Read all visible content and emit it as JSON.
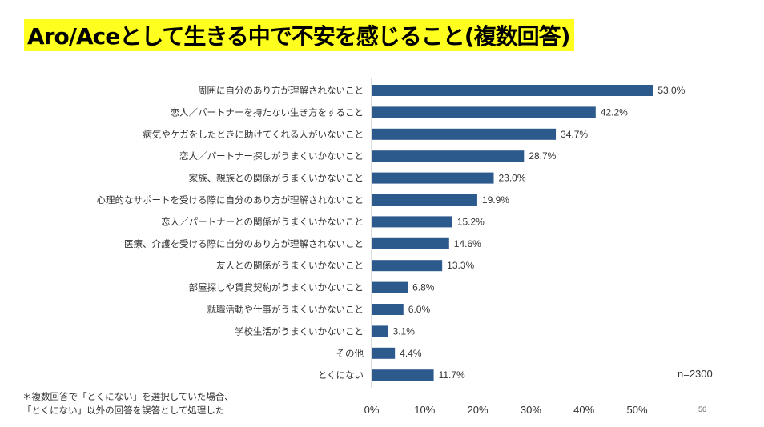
{
  "slide": {
    "title": "Aro/Aceとして生きる中で不安を感じること(複数回答)",
    "sample_size": "n=2300",
    "footnote_line1": "＊複数回答で「とくにない」を選択していた場合、",
    "footnote_line2": "「とくにない」以外の回答を誤答として処理した",
    "page_number": "56",
    "title_highlight_color": "#ffff1f"
  },
  "chart_data": {
    "type": "bar",
    "orientation": "horizontal",
    "title": "",
    "xlabel": "",
    "ylabel": "",
    "xlim": [
      0,
      55
    ],
    "xticks": [
      "0%",
      "10%",
      "20%",
      "30%",
      "40%",
      "50%"
    ],
    "grid": false,
    "legend": "none",
    "bar_color": "#2c5a8c",
    "categories": [
      "周囲に自分のあり方が理解されないこと",
      "恋人／パートナーを持たない生き方をすること",
      "病気やケガをしたときに助けてくれる人がいないこと",
      "恋人／パートナー探しがうまくいかないこと",
      "家族、親族との関係がうまくいかないこと",
      "心理的なサポートを受ける際に自分のあり方が理解されないこと",
      "恋人／パートナーとの関係がうまくいかないこと",
      "医療、介護を受ける際に自分のあり方が理解されないこと",
      "友人との関係がうまくいかないこと",
      "部屋探しや賃貸契約がうまくいかないこと",
      "就職活動や仕事がうまくいかないこと",
      "学校生活がうまくいかないこと",
      "その他",
      "とくにない"
    ],
    "values": [
      53.0,
      42.2,
      34.7,
      28.7,
      23.0,
      19.9,
      15.2,
      14.6,
      13.3,
      6.8,
      6.0,
      3.1,
      4.4,
      11.7
    ],
    "data_labels": [
      "53.0%",
      "42.2%",
      "34.7%",
      "28.7%",
      "23.0%",
      "19.9%",
      "15.2%",
      "14.6%",
      "13.3%",
      "6.8%",
      "6.0%",
      "3.1%",
      "4.4%",
      "11.7%"
    ]
  }
}
